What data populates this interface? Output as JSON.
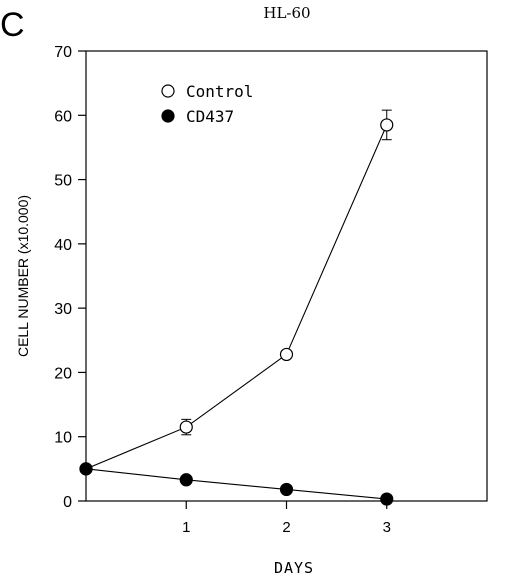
{
  "panel_letter": "C",
  "chart_data": {
    "type": "line",
    "title": "HL-60",
    "xlabel": "DAYS",
    "ylabel": "CELL NUMBER (x10.000)",
    "xlim": [
      0,
      4
    ],
    "ylim": [
      0,
      70
    ],
    "x_ticks": [
      1,
      2,
      3
    ],
    "y_ticks": [
      0,
      10,
      20,
      30,
      40,
      50,
      60,
      70
    ],
    "legend_position": "top-left",
    "series": [
      {
        "name": "Control",
        "marker": "open-circle",
        "x": [
          0,
          1,
          2,
          3
        ],
        "y": [
          5,
          11.5,
          22.8,
          58.5
        ],
        "error": [
          0,
          1.2,
          0,
          2.3
        ]
      },
      {
        "name": "CD437",
        "marker": "filled-circle",
        "x": [
          0,
          1,
          2,
          3
        ],
        "y": [
          5,
          3.3,
          1.8,
          0.3
        ],
        "error": [
          0,
          0,
          0,
          0
        ]
      }
    ]
  }
}
